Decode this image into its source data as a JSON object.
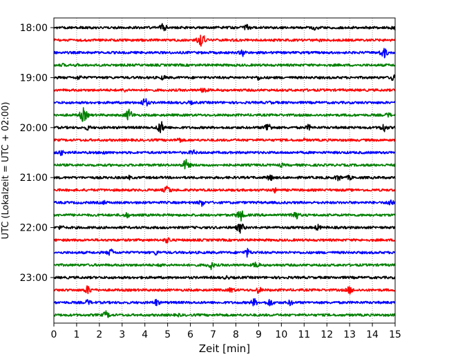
{
  "chart_data": {
    "type": "line",
    "subtype": "helicorder-seismogram",
    "xlabel": "Zeit  [min]",
    "ylabel": "UTC (Lokalzeit = UTC + 02:00)",
    "xlim": [
      0,
      15
    ],
    "x_ticks": [
      0,
      1,
      2,
      3,
      4,
      5,
      6,
      7,
      8,
      9,
      10,
      11,
      12,
      13,
      14,
      15
    ],
    "x_tick_labels": [
      "0",
      "1",
      "2",
      "3",
      "4",
      "5",
      "6",
      "7",
      "8",
      "9",
      "10",
      "11",
      "12",
      "13",
      "14",
      "15"
    ],
    "y_tick_labels": [
      "18:00",
      "19:00",
      "20:00",
      "21:00",
      "22:00",
      "23:00"
    ],
    "grid": "vertical dotted at each minute",
    "trace_colors": [
      "#000000",
      "#ff0000",
      "#0000ff",
      "#008000"
    ],
    "series": [
      {
        "start": "18:00",
        "events": [
          [
            4.8,
            1.0
          ],
          [
            8.5,
            0.8
          ],
          [
            11.5,
            0.7
          ],
          [
            15.0,
            0.8
          ]
        ]
      },
      {
        "start": "18:15",
        "events": [
          [
            6.5,
            1.6
          ],
          [
            9.0,
            0.4
          ],
          [
            11.7,
            0.4
          ]
        ]
      },
      {
        "start": "18:30",
        "events": [
          [
            8.3,
            0.8
          ],
          [
            14.5,
            1.2
          ]
        ]
      },
      {
        "start": "18:45",
        "events": [
          [
            0.4,
            0.4
          ],
          [
            1.0,
            0.4
          ],
          [
            5.5,
            0.3
          ]
        ]
      },
      {
        "start": "19:00",
        "events": [
          [
            1.1,
            0.6
          ],
          [
            4.8,
            0.6
          ],
          [
            9.0,
            0.6
          ],
          [
            14.9,
            0.7
          ]
        ]
      },
      {
        "start": "19:15",
        "events": [
          [
            3.1,
            0.5
          ],
          [
            6.6,
            0.8
          ],
          [
            11.0,
            0.4
          ]
        ]
      },
      {
        "start": "19:30",
        "events": [
          [
            4.0,
            1.1
          ],
          [
            6.0,
            0.5
          ],
          [
            9.5,
            0.4
          ]
        ]
      },
      {
        "start": "19:45",
        "events": [
          [
            1.3,
            1.5
          ],
          [
            3.3,
            1.3
          ],
          [
            13.0,
            0.3
          ],
          [
            14.7,
            0.6
          ]
        ]
      },
      {
        "start": "20:00",
        "events": [
          [
            1.5,
            0.6
          ],
          [
            4.7,
            1.4
          ],
          [
            9.4,
            1.2
          ],
          [
            11.2,
            0.7
          ],
          [
            14.5,
            1.0
          ]
        ]
      },
      {
        "start": "20:15",
        "events": [
          [
            5.5,
            0.7
          ],
          [
            9.0,
            0.3
          ],
          [
            11.0,
            0.4
          ]
        ]
      },
      {
        "start": "20:30",
        "events": [
          [
            0.3,
            0.7
          ],
          [
            2.2,
            0.5
          ],
          [
            6.1,
            0.7
          ]
        ]
      },
      {
        "start": "20:45",
        "events": [
          [
            5.8,
            1.2
          ],
          [
            10.0,
            0.5
          ]
        ]
      },
      {
        "start": "21:00",
        "events": [
          [
            3.3,
            0.5
          ],
          [
            9.5,
            0.8
          ],
          [
            12.5,
            0.8
          ],
          [
            13.0,
            0.6
          ]
        ]
      },
      {
        "start": "21:15",
        "events": [
          [
            5.0,
            1.0
          ],
          [
            9.7,
            0.6
          ]
        ]
      },
      {
        "start": "21:30",
        "events": [
          [
            2.2,
            0.5
          ],
          [
            6.5,
            0.8
          ],
          [
            14.8,
            0.9
          ]
        ]
      },
      {
        "start": "21:45",
        "events": [
          [
            3.2,
            0.7
          ],
          [
            8.2,
            1.3
          ],
          [
            10.6,
            1.2
          ]
        ]
      },
      {
        "start": "22:00",
        "events": [
          [
            0.3,
            0.6
          ],
          [
            8.2,
            1.2
          ],
          [
            11.6,
            0.7
          ]
        ]
      },
      {
        "start": "22:15",
        "events": [
          [
            5.0,
            0.8
          ]
        ]
      },
      {
        "start": "22:30",
        "events": [
          [
            2.5,
            0.9
          ],
          [
            4.5,
            0.6
          ],
          [
            8.5,
            0.9
          ]
        ]
      },
      {
        "start": "22:45",
        "events": [
          [
            4.7,
            0.5
          ],
          [
            6.9,
            0.9
          ],
          [
            8.9,
            0.8
          ]
        ]
      },
      {
        "start": "23:00",
        "events": [
          [
            7.6,
            0.5
          ],
          [
            10.0,
            0.4
          ]
        ]
      },
      {
        "start": "23:15",
        "events": [
          [
            1.5,
            1.0
          ],
          [
            7.8,
            0.7
          ],
          [
            9.0,
            0.8
          ],
          [
            13.0,
            0.9
          ]
        ]
      },
      {
        "start": "23:30",
        "events": [
          [
            1.5,
            0.7
          ],
          [
            4.5,
            0.8
          ],
          [
            8.8,
            0.9
          ],
          [
            9.5,
            0.9
          ],
          [
            10.4,
            0.7
          ]
        ]
      },
      {
        "start": "23:45",
        "events": [
          [
            2.3,
            0.9
          ],
          [
            5.5,
            0.4
          ],
          [
            7.3,
            0.4
          ]
        ]
      }
    ]
  }
}
